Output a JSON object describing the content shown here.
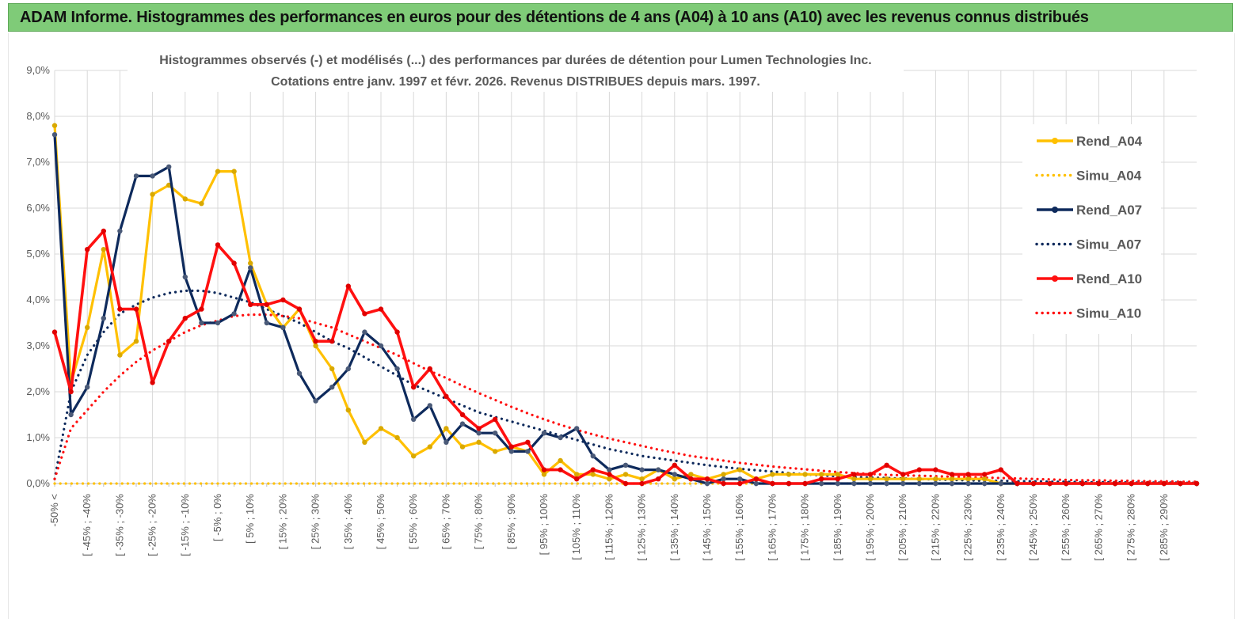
{
  "banner": {
    "title": "ADAM Informe. Histogrammes des performances en euros pour des détentions de 4 ans (A04) à 10 ans (A10) avec les revenus connus distribués"
  },
  "colors": {
    "banner_bg": "#7fcb78",
    "A04": "#ffc000",
    "A07": "#0e2a5c",
    "A10": "#ff1010",
    "grid": "#d9d9d9",
    "text": "#595959"
  },
  "chart_data": {
    "type": "line",
    "title": "Histogrammes observés (-)  et modélisés (...) des performances par durées de détention pour Lumen Technologies Inc.",
    "subtitle": "Cotations entre janv. 1997 et févr. 2026. Revenus DISTRIBUES depuis mars. 1997.",
    "ylim": [
      0,
      9
    ],
    "y_ticks": [
      "0,0%",
      "1,0%",
      "2,0%",
      "3,0%",
      "4,0%",
      "5,0%",
      "6,0%",
      "7,0%",
      "8,0%",
      "9,0%"
    ],
    "grid": true,
    "legend_position": "right",
    "x_tick_labels": [
      "-50% <",
      "[ -45% ; -40%",
      "[ -35% ; -30%",
      "[ -25% ; -20%",
      "[ -15% ; -10%",
      "[ -5% ; 0%",
      "[ 5% ; 10%",
      "[ 15% ; 20%",
      "[ 25% ; 30%",
      "[ 35% ; 40%",
      "[ 45% ; 50%",
      "[ 55% ; 60%",
      "[ 65% ; 70%",
      "[ 75% ; 80%",
      "[ 85% ; 90%",
      "[ 95% ; 100%",
      "[ 105% ; 110%",
      "[ 115% ; 120%",
      "[ 125% ; 130%",
      "[ 135% ; 140%",
      "[ 145% ; 150%",
      "[ 155% ; 160%",
      "[ 165% ; 170%",
      "[ 175% ; 180%",
      "[ 185% ; 190%",
      "[ 195% ; 200%",
      "[ 205% ; 210%",
      "[ 215% ; 220%",
      "[ 225% ; 230%",
      "[ 235% ; 240%",
      "[ 245% ; 250%",
      "[ 255% ; 260%",
      "[ 265% ; 270%",
      "[ 275% ; 280%",
      "[ 285% ; 290%"
    ],
    "n_points": 71,
    "series": [
      {
        "name": "Rend_A04",
        "style": "solid",
        "color": "#ffc000",
        "values": [
          7.8,
          2.2,
          3.4,
          5.1,
          2.8,
          3.1,
          6.3,
          6.5,
          6.2,
          6.1,
          6.8,
          6.8,
          4.8,
          3.9,
          3.4,
          3.8,
          3.0,
          2.5,
          1.6,
          0.9,
          1.2,
          1.0,
          0.6,
          0.8,
          1.2,
          0.8,
          0.9,
          0.7,
          0.8,
          0.7,
          0.2,
          0.5,
          0.2,
          0.2,
          0.1,
          0.2,
          0.1,
          0.3,
          0.1,
          0.2,
          0.1,
          0.2,
          0.3,
          0.1,
          0.2,
          0.2,
          0.2,
          0.2,
          0.2,
          0.1,
          0.1,
          0.1,
          0.1,
          0.1,
          0.1,
          0.1,
          0.1,
          0.1,
          0.0,
          0.0,
          0.0,
          0.0,
          0.0,
          0.0,
          0.0,
          0.0,
          0.0,
          0.0,
          0.0,
          0.0,
          0.0
        ]
      },
      {
        "name": "Simu_A04",
        "style": "dotted",
        "color": "#ffc000",
        "values": [
          0.0,
          0.0,
          0.0,
          0.0,
          0.0,
          0.0,
          0.0,
          0.0,
          0.0,
          0.0,
          0.0,
          0.0,
          0.0,
          0.0,
          0.0,
          0.0,
          0.0,
          0.0,
          0.0,
          0.0,
          0.0,
          0.0,
          0.0,
          0.0,
          0.0,
          0.0,
          0.0,
          0.0,
          0.0,
          0.0,
          0.0,
          0.0,
          0.0,
          0.0,
          0.0,
          0.0,
          0.0,
          0.0,
          0.0,
          0.0,
          0.0,
          0.0,
          0.0,
          0.0,
          0.0,
          0.0,
          0.0,
          0.0,
          0.0,
          0.0,
          0.0,
          0.0,
          0.0,
          0.0,
          0.0,
          0.0,
          0.0,
          0.0,
          0.0,
          0.0,
          0.0,
          0.0,
          0.0,
          0.0,
          0.0,
          0.0,
          0.0,
          0.0,
          0.0,
          0.0,
          0.0
        ]
      },
      {
        "name": "Rend_A07",
        "style": "solid",
        "color": "#0e2a5c",
        "values": [
          7.6,
          1.5,
          2.1,
          3.6,
          5.5,
          6.7,
          6.7,
          6.9,
          4.5,
          3.5,
          3.5,
          3.7,
          4.7,
          3.5,
          3.4,
          2.4,
          1.8,
          2.1,
          2.5,
          3.3,
          3.0,
          2.5,
          1.4,
          1.7,
          0.9,
          1.3,
          1.1,
          1.1,
          0.7,
          0.7,
          1.1,
          1.0,
          1.2,
          0.6,
          0.3,
          0.4,
          0.3,
          0.3,
          0.2,
          0.1,
          0.0,
          0.1,
          0.1,
          0.0,
          0.0,
          0.0,
          0.0,
          0.0,
          0.0,
          0.0,
          0.0,
          0.0,
          0.0,
          0.0,
          0.0,
          0.0,
          0.0,
          0.0,
          0.0,
          0.0,
          0.0,
          0.0,
          0.0,
          0.0,
          0.0,
          0.0,
          0.0,
          0.0,
          0.0,
          0.0,
          0.0
        ]
      },
      {
        "name": "Simu_A07",
        "style": "dotted",
        "color": "#0e2a5c",
        "values": [
          0.1,
          2.0,
          2.8,
          3.3,
          3.7,
          3.9,
          4.05,
          4.15,
          4.2,
          4.2,
          4.15,
          4.05,
          3.95,
          3.8,
          3.65,
          3.5,
          3.3,
          3.1,
          2.95,
          2.75,
          2.55,
          2.35,
          2.15,
          2.0,
          1.85,
          1.7,
          1.55,
          1.45,
          1.35,
          1.25,
          1.15,
          1.05,
          0.95,
          0.85,
          0.75,
          0.68,
          0.6,
          0.55,
          0.5,
          0.45,
          0.4,
          0.36,
          0.32,
          0.29,
          0.26,
          0.23,
          0.2,
          0.18,
          0.16,
          0.14,
          0.13,
          0.12,
          0.11,
          0.1,
          0.09,
          0.08,
          0.07,
          0.06,
          0.06,
          0.05,
          0.05,
          0.04,
          0.04,
          0.03,
          0.03,
          0.03,
          0.02,
          0.02,
          0.02,
          0.02,
          0.01
        ]
      },
      {
        "name": "Rend_A10",
        "style": "solid",
        "color": "#ff1010",
        "values": [
          3.3,
          2.0,
          5.1,
          5.5,
          3.8,
          3.8,
          2.2,
          3.1,
          3.6,
          3.8,
          5.2,
          4.8,
          3.9,
          3.9,
          4.0,
          3.8,
          3.1,
          3.1,
          4.3,
          3.7,
          3.8,
          3.3,
          2.1,
          2.5,
          1.9,
          1.5,
          1.2,
          1.4,
          0.8,
          0.9,
          0.3,
          0.3,
          0.1,
          0.3,
          0.2,
          0.0,
          0.0,
          0.1,
          0.4,
          0.1,
          0.1,
          0.0,
          0.0,
          0.1,
          0.0,
          0.0,
          0.0,
          0.1,
          0.1,
          0.2,
          0.2,
          0.4,
          0.2,
          0.3,
          0.3,
          0.2,
          0.2,
          0.2,
          0.3,
          0.0,
          0.0,
          0.0,
          0.0,
          0.0,
          0.0,
          0.0,
          0.0,
          0.0,
          0.0,
          0.0,
          0.0
        ]
      },
      {
        "name": "Simu_A10",
        "style": "dotted",
        "color": "#ff1010",
        "values": [
          0.1,
          1.2,
          1.6,
          2.0,
          2.35,
          2.65,
          2.9,
          3.1,
          3.3,
          3.45,
          3.55,
          3.65,
          3.68,
          3.68,
          3.65,
          3.6,
          3.5,
          3.4,
          3.25,
          3.1,
          2.95,
          2.8,
          2.62,
          2.45,
          2.3,
          2.13,
          1.97,
          1.82,
          1.67,
          1.53,
          1.4,
          1.28,
          1.17,
          1.07,
          0.98,
          0.9,
          0.82,
          0.74,
          0.67,
          0.6,
          0.55,
          0.5,
          0.45,
          0.41,
          0.37,
          0.34,
          0.31,
          0.28,
          0.25,
          0.23,
          0.21,
          0.19,
          0.18,
          0.17,
          0.16,
          0.15,
          0.14,
          0.13,
          0.12,
          0.11,
          0.1,
          0.09,
          0.08,
          0.07,
          0.07,
          0.06,
          0.06,
          0.05,
          0.05,
          0.04,
          0.04
        ]
      }
    ]
  }
}
